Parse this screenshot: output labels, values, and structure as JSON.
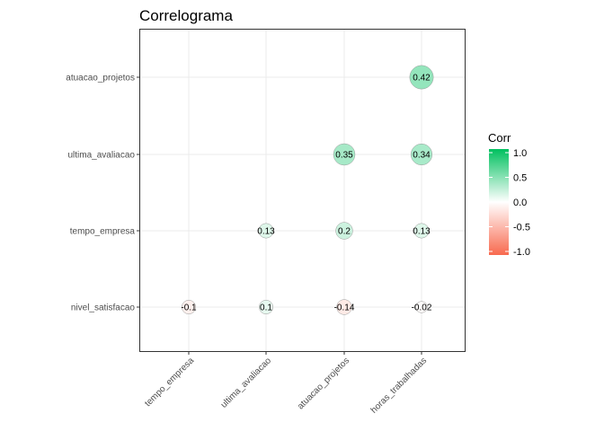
{
  "chart_data": {
    "type": "heatmap",
    "title": "Correlograma",
    "x_categories": [
      "tempo_empresa",
      "ultima_avaliacao",
      "atuacao_projetos",
      "horas_trabalhadas"
    ],
    "y_categories": [
      "atuacao_projetos",
      "ultima_avaliacao",
      "tempo_empresa",
      "nivel_satisfacao"
    ],
    "cells": [
      {
        "x": "horas_trabalhadas",
        "y": "atuacao_projetos",
        "value": 0.42,
        "label": "0.42"
      },
      {
        "x": "atuacao_projetos",
        "y": "ultima_avaliacao",
        "value": 0.35,
        "label": "0.35"
      },
      {
        "x": "horas_trabalhadas",
        "y": "ultima_avaliacao",
        "value": 0.34,
        "label": "0.34"
      },
      {
        "x": "ultima_avaliacao",
        "y": "tempo_empresa",
        "value": 0.13,
        "label": "0.13"
      },
      {
        "x": "atuacao_projetos",
        "y": "tempo_empresa",
        "value": 0.2,
        "label": "0.2"
      },
      {
        "x": "horas_trabalhadas",
        "y": "tempo_empresa",
        "value": 0.13,
        "label": "0.13"
      },
      {
        "x": "tempo_empresa",
        "y": "nivel_satisfacao",
        "value": -0.1,
        "label": "-0.1"
      },
      {
        "x": "ultima_avaliacao",
        "y": "nivel_satisfacao",
        "value": 0.1,
        "label": "0.1"
      },
      {
        "x": "atuacao_projetos",
        "y": "nivel_satisfacao",
        "value": -0.14,
        "label": "-0.14"
      },
      {
        "x": "horas_trabalhadas",
        "y": "nivel_satisfacao",
        "value": -0.02,
        "label": "-0.02"
      }
    ],
    "legend": {
      "title": "Corr",
      "ticks": [
        "1.0",
        "0.5",
        "0.0",
        "-0.5",
        "-1.0"
      ],
      "tick_values": [
        1.0,
        0.5,
        0.0,
        -0.5,
        -1.0
      ],
      "range": [
        -1.0,
        1.0
      ],
      "colors": {
        "low": "#F8694E",
        "mid": "#FFFFFF",
        "high": "#00C05F"
      }
    },
    "grid": true
  }
}
